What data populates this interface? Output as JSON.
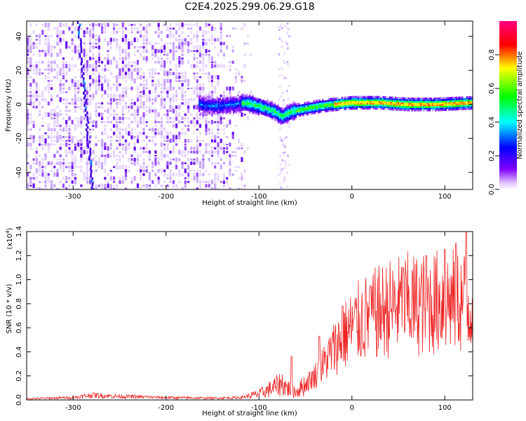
{
  "title": "C2E4.2025.299.06.29.G18",
  "chart_data": [
    {
      "type": "heatmap",
      "xlabel": "Height of straight line (km)",
      "ylabel": "Frequency (Hz)",
      "xlim": [
        -350,
        130
      ],
      "ylim": [
        -50,
        49
      ],
      "xticks": [
        -300,
        -200,
        -100,
        0,
        100
      ],
      "yticks": [
        -40,
        -20,
        0,
        20,
        40
      ],
      "colorbar": {
        "label": "Normalized spectral amplitude",
        "range": [
          0.0,
          1.0
        ],
        "ticks": [
          "0.0",
          "0.2",
          "0.4",
          "0.6",
          "0.8"
        ],
        "tick_values": [
          0.0,
          0.2,
          0.4,
          0.6,
          0.8
        ],
        "colors": [
          "#ffffff",
          "#8000ff",
          "#0000ff",
          "#00ffff",
          "#00ff00",
          "#ffff00",
          "#ff0000",
          "#ff0080"
        ]
      },
      "ridge": {
        "name": "dominant frequency",
        "x": [
          -165,
          -150,
          -130,
          -115,
          -100,
          -85,
          -75,
          -65,
          -55,
          -45,
          -35,
          -20,
          0,
          30,
          60,
          90,
          130
        ],
        "y": [
          0,
          -1,
          0,
          1,
          -1,
          -4,
          -7,
          -4,
          -3,
          -2,
          -1,
          0,
          1,
          1,
          0,
          0,
          1
        ]
      },
      "vertical_streak": {
        "x": [
          -295,
          -280
        ],
        "y": [
          49,
          -50
        ]
      }
    },
    {
      "type": "line",
      "xlabel": "Height of straight line (km)",
      "ylabel": "SNR (10 * v/v)",
      "multiplier": "(x10^4)",
      "multiplier_base": "(x10",
      "multiplier_exp": "4",
      "multiplier_close": ")",
      "xlim": [
        -350,
        130
      ],
      "ylim": [
        0,
        1.4
      ],
      "xticks": [
        -300,
        -200,
        -100,
        0,
        100
      ],
      "yticks": [
        "0.0",
        "0.2",
        "0.4",
        "0.6",
        "0.8",
        "1.0",
        "1.2",
        "1.4"
      ],
      "ytick_values": [
        0.0,
        0.2,
        0.4,
        0.6,
        0.8,
        1.0,
        1.2,
        1.4
      ],
      "series": [
        {
          "name": "SNR",
          "color": "#ee2222",
          "envelope": {
            "x": [
              -350,
              -300,
              -280,
              -250,
              -200,
              -150,
              -120,
              -100,
              -85,
              -75,
              -70,
              -60,
              -50,
              -40,
              -30,
              -20,
              -10,
              0,
              10,
              20,
              30,
              40,
              50,
              60,
              70,
              80,
              90,
              100,
              110,
              120,
              130
            ],
            "y": [
              0.01,
              0.02,
              0.04,
              0.03,
              0.02,
              0.015,
              0.02,
              0.05,
              0.1,
              0.14,
              0.1,
              0.07,
              0.13,
              0.2,
              0.3,
              0.42,
              0.52,
              0.6,
              0.66,
              0.7,
              0.73,
              0.76,
              0.78,
              0.8,
              0.79,
              0.8,
              0.81,
              0.83,
              0.82,
              0.82,
              0.78
            ]
          },
          "peaks": [
            {
              "x": -65,
              "y": 0.36
            },
            {
              "x": -35,
              "y": 0.53
            },
            {
              "x": -10,
              "y": 0.78
            },
            {
              "x": 20,
              "y": 0.95
            },
            {
              "x": 55,
              "y": 1.1
            },
            {
              "x": 80,
              "y": 1.2
            },
            {
              "x": 100,
              "y": 1.25
            },
            {
              "x": 112,
              "y": 1.3
            },
            {
              "x": 123,
              "y": 1.4
            }
          ]
        }
      ]
    }
  ]
}
